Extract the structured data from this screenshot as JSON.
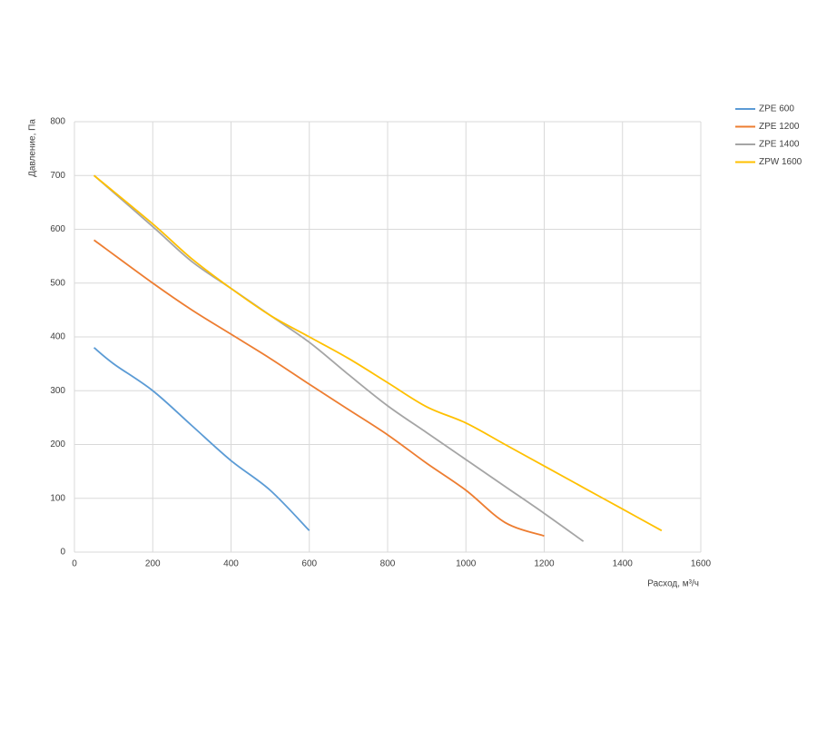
{
  "chart_data": {
    "type": "line",
    "xlabel": "Расход, м³/ч",
    "ylabel": "Давление, Па",
    "xlim": [
      0,
      1600
    ],
    "xticks": [
      0,
      200,
      400,
      600,
      800,
      1000,
      1200,
      1400,
      1600
    ],
    "ylim": [
      0,
      800
    ],
    "yticks": [
      0,
      100,
      200,
      300,
      400,
      500,
      600,
      700,
      800
    ],
    "grid": true,
    "legend": "right",
    "series": [
      {
        "name": "ZPE 600",
        "color": "#5b9bd5",
        "x": [
          50,
          100,
          200,
          300,
          400,
          500,
          600
        ],
        "values": [
          380,
          350,
          300,
          235,
          170,
          115,
          40
        ]
      },
      {
        "name": "ZPE 1200",
        "color": "#ed7d31",
        "x": [
          50,
          200,
          300,
          400,
          500,
          600,
          700,
          800,
          900,
          1000,
          1100,
          1200
        ],
        "values": [
          580,
          500,
          450,
          405,
          360,
          312,
          265,
          218,
          165,
          115,
          55,
          30
        ]
      },
      {
        "name": "ZPE 1400",
        "color": "#a5a5a5",
        "x": [
          50,
          200,
          300,
          400,
          500,
          600,
          700,
          800,
          900,
          1000,
          1100,
          1200,
          1300
        ],
        "values": [
          700,
          605,
          540,
          490,
          440,
          390,
          330,
          272,
          222,
          172,
          122,
          72,
          20
        ]
      },
      {
        "name": "ZPW 1600",
        "color": "#ffc000",
        "x": [
          50,
          200,
          300,
          400,
          500,
          600,
          700,
          800,
          900,
          1000,
          1100,
          1200,
          1300,
          1400,
          1500
        ],
        "values": [
          700,
          610,
          545,
          490,
          440,
          400,
          360,
          315,
          270,
          240,
          200,
          160,
          120,
          80,
          40
        ]
      }
    ]
  }
}
